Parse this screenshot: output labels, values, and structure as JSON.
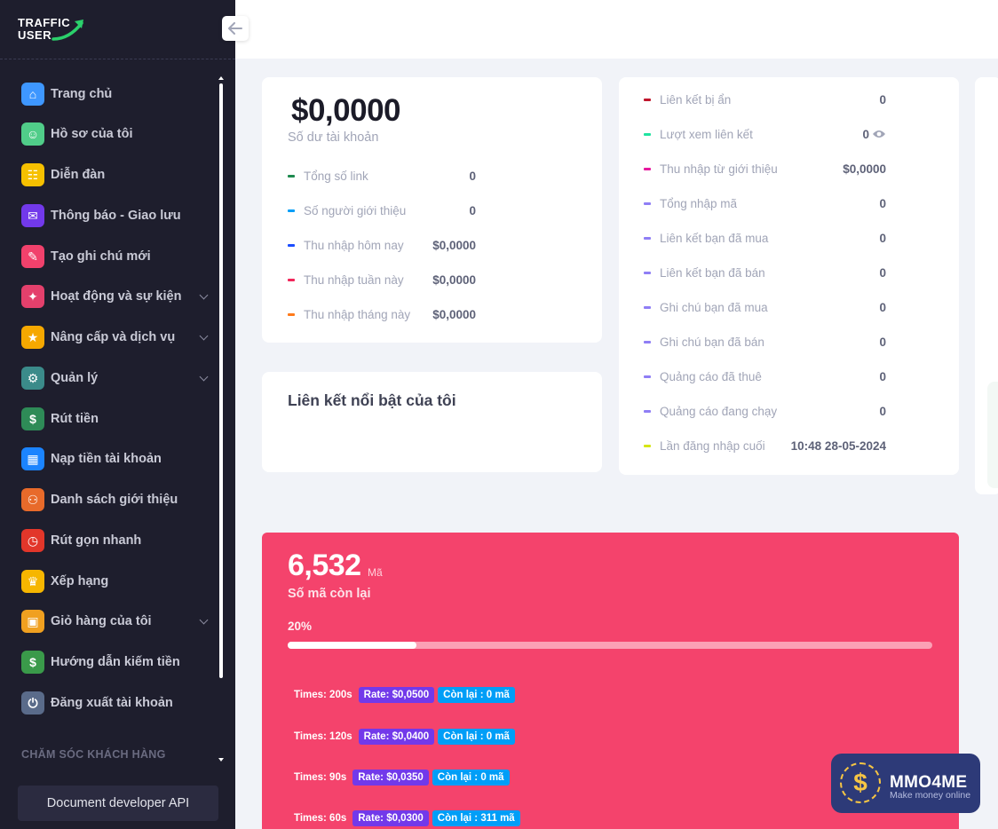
{
  "logo": {
    "line1": "TRAFFIC",
    "line2": "USER"
  },
  "sidebar": {
    "items": [
      {
        "label": "Trang chủ",
        "icon": "home-icon",
        "color": "#3e97ff",
        "glyph": "⌂",
        "chevron": false
      },
      {
        "label": "Hồ sơ của tôi",
        "icon": "profile-icon",
        "color": "#50cd89",
        "glyph": "☺",
        "chevron": false
      },
      {
        "label": "Diễn đàn",
        "icon": "forum-icon",
        "color": "#f6c000",
        "glyph": "☷",
        "chevron": false
      },
      {
        "label": "Thông báo - Giao lưu",
        "icon": "notification-icon",
        "color": "#7239ea",
        "glyph": "✉",
        "chevron": false
      },
      {
        "label": "Tạo ghi chú mới",
        "icon": "note-icon",
        "color": "#f1416c",
        "glyph": "✎",
        "chevron": false
      },
      {
        "label": "Hoạt động và sự kiện",
        "icon": "event-icon",
        "color": "#e4406c",
        "glyph": "✦",
        "chevron": true
      },
      {
        "label": "Nâng cấp và dịch vụ",
        "icon": "upgrade-icon",
        "color": "#f6a800",
        "glyph": "★",
        "chevron": true
      },
      {
        "label": "Quản lý",
        "icon": "manage-icon",
        "color": "#3b8b8a",
        "glyph": "⚙",
        "chevron": true
      },
      {
        "label": "Rút tiền",
        "icon": "withdraw-icon",
        "color": "#2e8b57",
        "glyph": "$",
        "chevron": false
      },
      {
        "label": "Nạp tiền tài khoản",
        "icon": "bank-icon",
        "color": "#1b84ff",
        "glyph": "▦",
        "chevron": false
      },
      {
        "label": "Danh sách giới thiệu",
        "icon": "referral-icon",
        "color": "#e86a2a",
        "glyph": "⚇",
        "chevron": false
      },
      {
        "label": "Rút gọn nhanh",
        "icon": "timer-icon",
        "color": "#e2362a",
        "glyph": "◷",
        "chevron": false
      },
      {
        "label": "Xếp hạng",
        "icon": "trophy-icon",
        "color": "#f6b600",
        "glyph": "♛",
        "chevron": false
      },
      {
        "label": "Giỏ hàng của tôi",
        "icon": "cart-icon",
        "color": "#f0a020",
        "glyph": "▣",
        "chevron": true
      },
      {
        "label": "Hướng dẫn kiếm tiền",
        "icon": "money-guide-icon",
        "color": "#3a9a4a",
        "glyph": "$",
        "chevron": false
      },
      {
        "label": "Đăng xuất tài khoản",
        "icon": "logout-icon",
        "color": "#5a6b8a",
        "glyph": "⏻",
        "chevron": false
      }
    ],
    "section_title": "CHĂM SÓC KHÁCH HÀNG",
    "api_button": "Document developer API"
  },
  "balance_card": {
    "value": "$0,0000",
    "label": "Số dư tài khoản",
    "stats": [
      {
        "label": "Tổng số link",
        "value": "0",
        "color": "#1e8a4f"
      },
      {
        "label": "Số người giới thiệu",
        "value": "0",
        "color": "#009ef7"
      },
      {
        "label": "Thu nhập hôm nay",
        "value": "$0,0000",
        "color": "#1b4dff"
      },
      {
        "label": "Thu nhập tuần này",
        "value": "$0,0000",
        "color": "#f1265a"
      },
      {
        "label": "Thu nhập tháng này",
        "value": "$0,0000",
        "color": "#ff7a1a"
      }
    ]
  },
  "featured_card": {
    "title": "Liên kết nổi bật của tôi"
  },
  "right_stats": [
    {
      "label": "Liên kết bị ẩn",
      "value": "0",
      "color": "#c0162c"
    },
    {
      "label": "Lượt xem liên kết",
      "value": "0",
      "color": "#20e3a0",
      "eye": true
    },
    {
      "label": "Thu nhập từ giới thiệu",
      "value": "$0,0000",
      "color": "#e6199e"
    },
    {
      "label": "Tổng nhập mã",
      "value": "0",
      "color": "#8f7ef5"
    },
    {
      "label": "Liên kết bạn đã mua",
      "value": "0",
      "color": "#8f7ef5"
    },
    {
      "label": "Liên kết bạn đã bán",
      "value": "0",
      "color": "#8f7ef5"
    },
    {
      "label": "Ghi chú bạn đã mua",
      "value": "0",
      "color": "#8f7ef5"
    },
    {
      "label": "Ghi chú bạn đã bán",
      "value": "0",
      "color": "#8f7ef5"
    },
    {
      "label": "Quảng cáo đã thuê",
      "value": "0",
      "color": "#8f7ef5"
    },
    {
      "label": "Quảng cáo đang chạy",
      "value": "0",
      "color": "#8f7ef5"
    },
    {
      "label": "Lần đăng nhập cuối",
      "value": "10:48 28-05-2024",
      "color": "#d6e614"
    }
  ],
  "codes_card": {
    "count": "6,532",
    "unit": "Mã",
    "label": "Số mã còn lại",
    "percent_label": "20%",
    "progress": 0.2,
    "rates": [
      {
        "times": "Times: 200s",
        "rate": "Rate: $0,0500",
        "left": "Còn lại : 0 mã"
      },
      {
        "times": "Times: 120s",
        "rate": "Rate: $0,0400",
        "left": "Còn lại : 0 mã"
      },
      {
        "times": "Times: 90s",
        "rate": "Rate: $0,0350",
        "left": "Còn lại : 0 mã"
      },
      {
        "times": "Times: 60s",
        "rate": "Rate: $0,0300",
        "left": "Còn lại : 311 mã"
      }
    ]
  },
  "watermark": {
    "title": "MMO4ME",
    "subtitle": "Make money online",
    "glyph": "$"
  }
}
